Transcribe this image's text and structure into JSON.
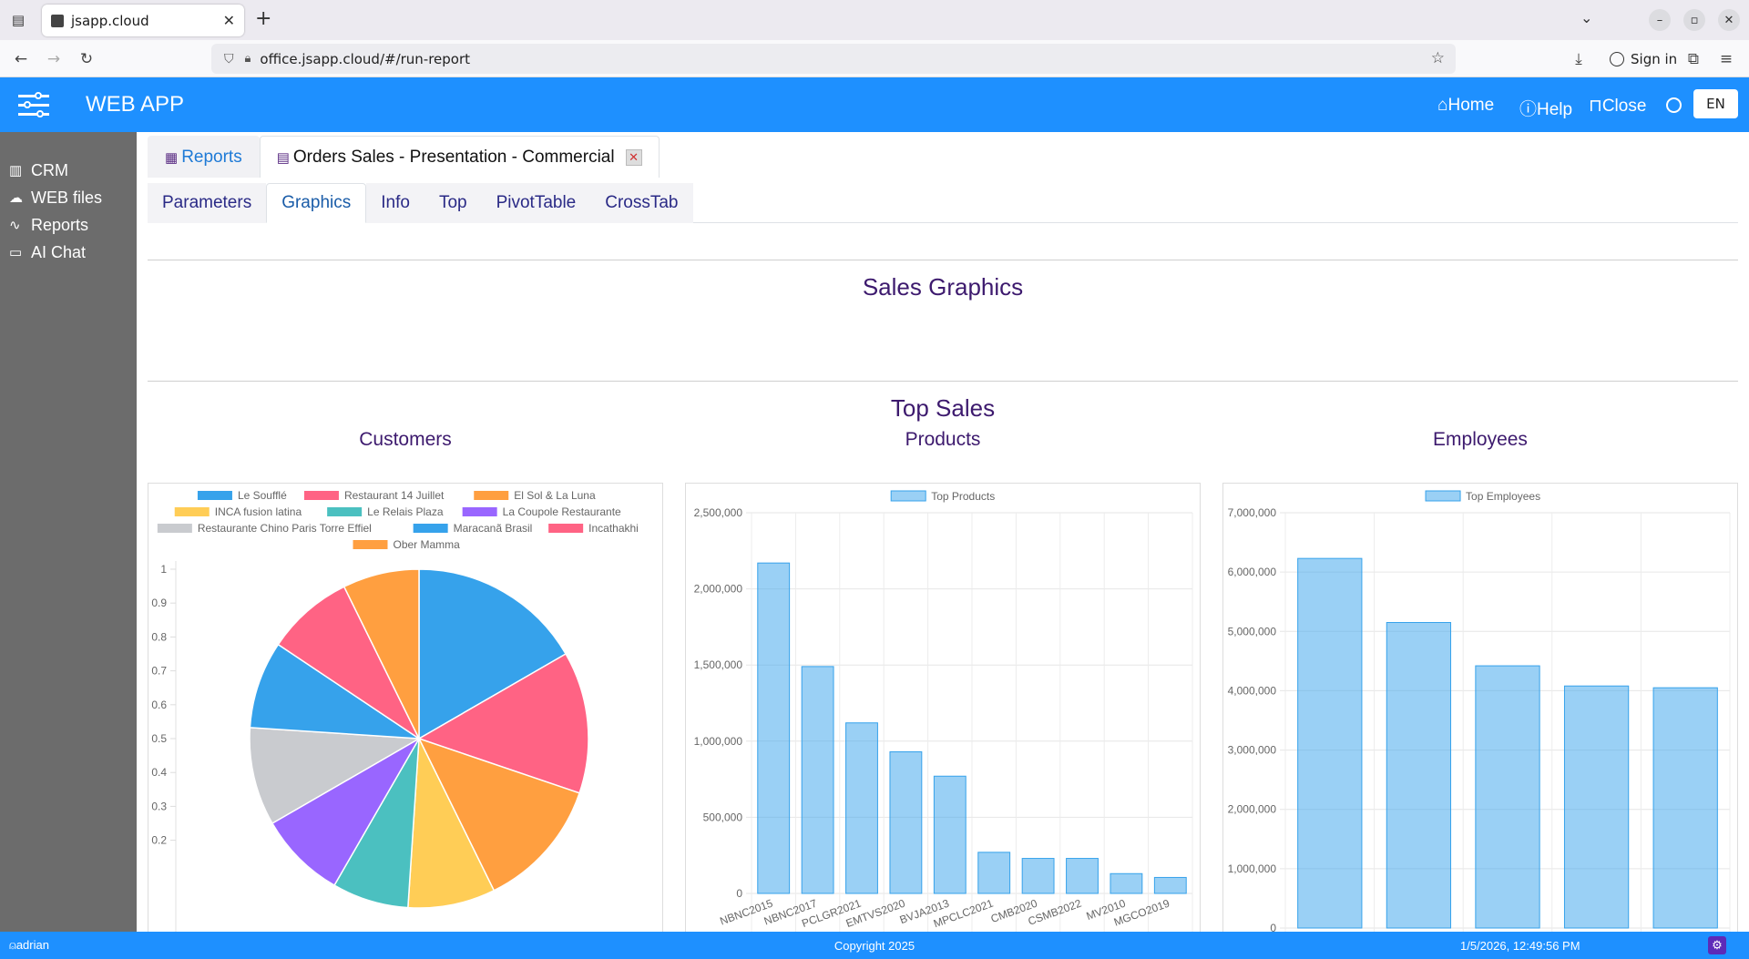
{
  "browser": {
    "tab_title": "jsapp.cloud",
    "url": "office.jsapp.cloud/#/run-report",
    "signin_label": "Sign in"
  },
  "header": {
    "app_title": "WEB APP",
    "home_label": "Home",
    "help_label": "Help",
    "close_label": "Close",
    "lang": "EN"
  },
  "sidebar": {
    "items": [
      {
        "label": "CRM",
        "icon": "building-icon"
      },
      {
        "label": "WEB files",
        "icon": "cloud-icon"
      },
      {
        "label": "Reports",
        "icon": "activity-icon"
      },
      {
        "label": "AI Chat",
        "icon": "chat-icon"
      }
    ]
  },
  "report_tabs": {
    "reports_label": "Reports",
    "current_label": "Orders Sales - Presentation - Commercial"
  },
  "sub_tabs": [
    "Parameters",
    "Graphics",
    "Info",
    "Top",
    "PivotTable",
    "CrossTab"
  ],
  "main": {
    "sales_graphics_title": "Sales Graphics",
    "top_sales_title": "Top Sales",
    "customers_title": "Customers",
    "products_title": "Products",
    "employees_title": "Employees"
  },
  "chart_data": [
    {
      "type": "pie",
      "labels": [
        "Le Soufflé",
        "Restaurant 14 Juillet",
        "El Sol & La Luna",
        "INCA fusion latina",
        "Le Relais Plaza",
        "La Coupole Restaurante",
        "Restaurante Chino Paris Torre Effiel",
        "Maracanã Brasil",
        "Incathakhi",
        "Ober Mamma"
      ],
      "values": [
        16,
        13,
        12,
        8,
        7,
        8,
        9,
        8,
        8,
        7
      ],
      "colors": [
        "#36a2eb",
        "#ff6384",
        "#ff9f40",
        "#ffcd56",
        "#4bc0c0",
        "#9966ff",
        "#c9cbcf",
        "#36a2eb",
        "#ff6384",
        "#ff9f40"
      ],
      "yticks": [
        "1",
        "0.9",
        "0.8",
        "0.7",
        "0.6",
        "0.5",
        "0.4",
        "0.3",
        "0.2"
      ],
      "legend": "top"
    },
    {
      "type": "bar",
      "series_name": "Top Products",
      "categories": [
        "NBNC2015",
        "NBNC2017",
        "PCLGR2021",
        "EMTVS2020",
        "BVJA2013",
        "MPCLC2021",
        "CMB2020",
        "CSMB2022",
        "MV2010",
        "MGCO2019"
      ],
      "values": [
        2170000,
        1490000,
        1120000,
        930000,
        770000,
        270000,
        230000,
        230000,
        130000,
        105000
      ],
      "ylim": [
        0,
        2500000
      ],
      "yticks": [
        0,
        500000,
        1000000,
        1500000,
        2000000,
        2500000
      ],
      "ytick_labels": [
        "0",
        "500,000",
        "1,000,000",
        "1,500,000",
        "2,000,000",
        "2,500,000"
      ],
      "legend": "top"
    },
    {
      "type": "bar",
      "series_name": "Top Employees",
      "categories": [
        "",
        "",
        "",
        "",
        ""
      ],
      "values": [
        6230000,
        5150000,
        4420000,
        4080000,
        4050000
      ],
      "ylim": [
        0,
        7000000
      ],
      "yticks": [
        0,
        1000000,
        2000000,
        3000000,
        4000000,
        5000000,
        6000000,
        7000000
      ],
      "ytick_labels": [
        "0",
        "1,000,000",
        "2,000,000",
        "3,000,000",
        "4,000,000",
        "5,000,000",
        "6,000,000",
        "7,000,000"
      ],
      "legend": "top"
    }
  ],
  "footer": {
    "user": "adrian",
    "copyright": "Copyright 2025",
    "datetime": "1/5/2026, 12:49:56 PM"
  }
}
